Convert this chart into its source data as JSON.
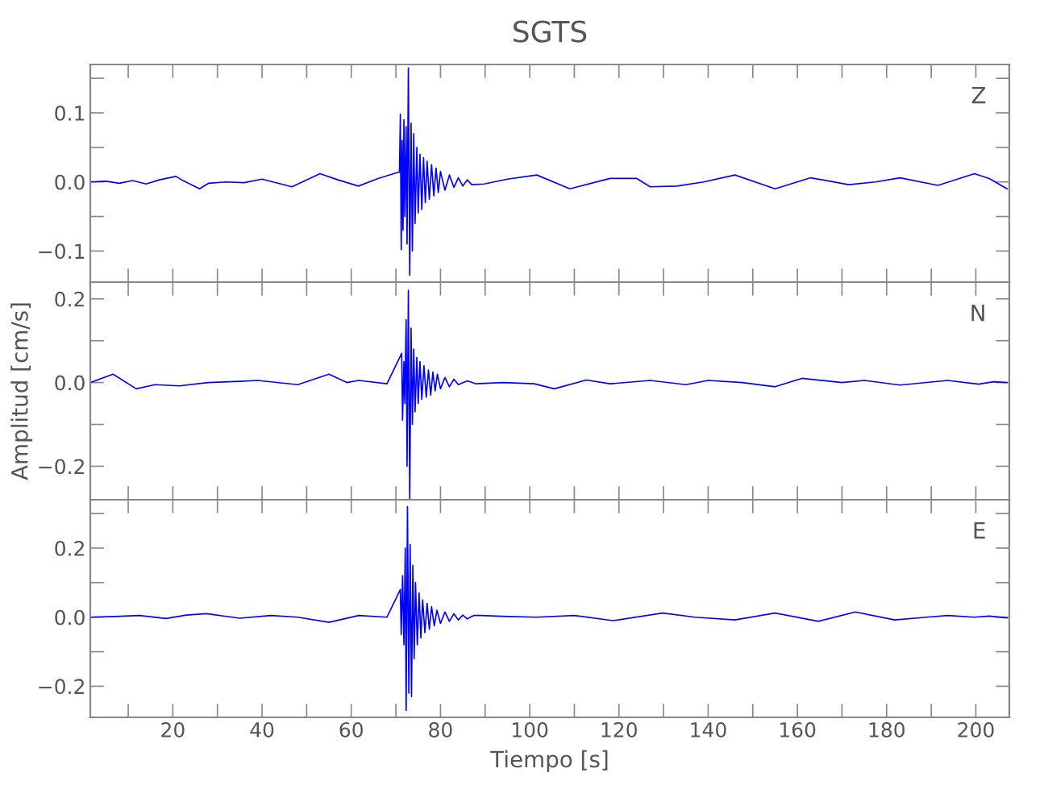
{
  "chart_data": [
    {
      "type": "line",
      "title": "SGTS",
      "annotations": [
        "Z"
      ],
      "grid": false,
      "tick_labels": "y",
      "xlim": [
        1.5,
        207.5
      ],
      "ylim": [
        -0.145,
        0.17
      ],
      "xticks": [
        {
          "value": 10,
          "label": null
        },
        20,
        {
          "value": 30,
          "label": null
        },
        40,
        {
          "value": 50,
          "label": null
        },
        60,
        {
          "value": 70,
          "label": null
        },
        80,
        {
          "value": 90,
          "label": null
        },
        100,
        {
          "value": 110,
          "label": null
        },
        120,
        {
          "value": 130,
          "label": null
        },
        140,
        {
          "value": 150,
          "label": null
        },
        160,
        {
          "value": 170,
          "label": null
        },
        180,
        {
          "value": 190,
          "label": null
        },
        200
      ],
      "yticks": [
        {
          "value": -0.1,
          "label": "−0.1"
        },
        {
          "value": -0.05,
          "label": null
        },
        {
          "value": 0,
          "label": "0.0"
        },
        {
          "value": 0.05,
          "label": null
        },
        {
          "value": 0.1,
          "label": "0.1"
        },
        {
          "value": 0.15,
          "label": null
        }
      ],
      "series": [
        {
          "color": "#0000ff",
          "x": [
            1.5,
            5,
            8,
            11,
            14,
            17,
            20.7,
            22,
            26,
            28,
            32,
            36,
            40,
            46.7,
            53,
            57,
            61.6,
            66,
            70.5,
            70.8,
            71.0,
            71.2,
            71.4,
            71.6,
            71.8,
            72.0,
            72.3,
            72.5,
            72.8,
            73.1,
            73.4,
            73.7,
            74.0,
            74.3,
            74.7,
            75.0,
            75.4,
            75.8,
            76.2,
            76.6,
            77.0,
            77.5,
            78.0,
            78.5,
            79.0,
            79.5,
            80.0,
            81,
            82,
            83,
            84,
            85,
            86,
            87,
            89.8,
            95,
            101.6,
            109,
            118,
            124,
            127,
            133,
            139,
            146,
            155,
            163,
            171.5,
            177.5,
            183,
            191.5,
            199.7,
            203,
            207
          ],
          "values": [
            0,
            0.001,
            -0.002,
            0.002,
            -0.003,
            0.003,
            0.008,
            0.003,
            -0.01,
            -0.002,
            0,
            -0.001,
            0.004,
            -0.007,
            0.012,
            0.003,
            -0.006,
            0.005,
            0.014,
            0.014,
            0.098,
            -0.098,
            0.06,
            -0.07,
            0.09,
            -0.05,
            0.08,
            -0.09,
            0.165,
            -0.135,
            0.085,
            -0.1,
            0.07,
            -0.06,
            0.05,
            -0.045,
            0.04,
            -0.04,
            0.035,
            -0.03,
            0.03,
            -0.025,
            0.025,
            -0.02,
            0.02,
            -0.015,
            0.015,
            -0.012,
            0.01,
            -0.008,
            0.006,
            -0.006,
            0.003,
            -0.004,
            -0.003,
            0.004,
            0.01,
            -0.01,
            0.005,
            0.005,
            -0.007,
            -0.006,
            0,
            0.01,
            -0.01,
            0.006,
            -0.004,
            0,
            0.006,
            -0.005,
            0.012,
            0.005,
            -0.01
          ]
        }
      ]
    },
    {
      "type": "line",
      "ylabel": "Amplitud [cm/s]",
      "annotations": [
        "N"
      ],
      "grid": false,
      "tick_labels": "y",
      "xlim": [
        1.5,
        207.5
      ],
      "ylim": [
        -0.28,
        0.24
      ],
      "xticks": [
        {
          "value": 10,
          "label": null
        },
        20,
        {
          "value": 30,
          "label": null
        },
        40,
        {
          "value": 50,
          "label": null
        },
        60,
        {
          "value": 70,
          "label": null
        },
        80,
        {
          "value": 90,
          "label": null
        },
        100,
        {
          "value": 110,
          "label": null
        },
        120,
        {
          "value": 130,
          "label": null
        },
        140,
        {
          "value": 150,
          "label": null
        },
        160,
        {
          "value": 170,
          "label": null
        },
        180,
        {
          "value": 190,
          "label": null
        },
        200
      ],
      "yticks": [
        {
          "value": -0.2,
          "label": "−0.2"
        },
        {
          "value": -0.1,
          "label": null
        },
        {
          "value": 0,
          "label": "0.0"
        },
        {
          "value": 0.1,
          "label": null
        },
        {
          "value": 0.2,
          "label": "0.2"
        }
      ],
      "series": [
        {
          "color": "#0000ff",
          "x": [
            1.5,
            6.6,
            11.8,
            16,
            21.5,
            28,
            35,
            39,
            48,
            55,
            59,
            61.7,
            68,
            71.3,
            71.5,
            71.8,
            72.0,
            72.3,
            72.5,
            72.8,
            73.1,
            73.4,
            73.7,
            74.0,
            74.3,
            74.7,
            75.0,
            75.4,
            75.8,
            76.3,
            76.8,
            77.3,
            77.8,
            78.3,
            78.8,
            79.3,
            80,
            81,
            82,
            83,
            84,
            86,
            88,
            94,
            101,
            105.5,
            112.7,
            118,
            127,
            135,
            140,
            147.6,
            155,
            161,
            170,
            175,
            183,
            193.7,
            200.6,
            204,
            207
          ],
          "values": [
            0,
            0.02,
            -0.015,
            -0.005,
            -0.008,
            0,
            0.003,
            0.005,
            -0.005,
            0.02,
            0,
            0.005,
            -0.003,
            0.07,
            -0.09,
            0.05,
            -0.05,
            0.15,
            -0.2,
            0.22,
            -0.28,
            0.13,
            -0.1,
            0.08,
            -0.07,
            0.06,
            -0.05,
            0.05,
            -0.04,
            0.04,
            -0.035,
            0.03,
            -0.03,
            0.025,
            -0.02,
            0.02,
            -0.015,
            0.012,
            -0.01,
            0.008,
            -0.005,
            0.004,
            -0.003,
            0,
            -0.003,
            -0.015,
            0.006,
            -0.003,
            0.005,
            -0.005,
            0.005,
            0,
            -0.01,
            0.01,
            0,
            0.005,
            -0.006,
            0.005,
            -0.004,
            0.002,
            0
          ]
        }
      ]
    },
    {
      "type": "line",
      "xlabel": "Tiempo [s]",
      "annotations": [
        "E"
      ],
      "grid": false,
      "xlim": [
        1.5,
        207.5
      ],
      "ylim": [
        -0.29,
        0.34
      ],
      "xticks": [
        {
          "value": 10,
          "label": null
        },
        20,
        {
          "value": 30,
          "label": null
        },
        40,
        {
          "value": 50,
          "label": null
        },
        60,
        {
          "value": 70,
          "label": null
        },
        80,
        {
          "value": 90,
          "label": null
        },
        100,
        {
          "value": 110,
          "label": null
        },
        120,
        {
          "value": 130,
          "label": null
        },
        140,
        {
          "value": 150,
          "label": null
        },
        160,
        {
          "value": 170,
          "label": null
        },
        180,
        {
          "value": 190,
          "label": null
        },
        200
      ],
      "yticks": [
        {
          "value": -0.2,
          "label": "−0.2"
        },
        {
          "value": -0.1,
          "label": null
        },
        {
          "value": 0,
          "label": "0.0"
        },
        {
          "value": 0.1,
          "label": null
        },
        {
          "value": 0.2,
          "label": "0.2"
        },
        {
          "value": 0.3,
          "label": null
        }
      ],
      "series": [
        {
          "color": "#0000ff",
          "x": [
            1.5,
            7,
            12.5,
            18.5,
            23,
            27.5,
            35,
            42,
            48,
            55,
            61.7,
            68,
            71.0,
            71.2,
            71.5,
            71.8,
            72.1,
            72.3,
            72.6,
            72.9,
            73.2,
            73.5,
            73.8,
            74.1,
            74.4,
            74.8,
            75.2,
            75.6,
            76.0,
            76.5,
            77.0,
            77.5,
            78.0,
            78.6,
            79.2,
            80,
            81,
            82,
            83,
            84,
            85,
            86,
            87.5,
            89,
            95,
            101.6,
            110,
            118.7,
            129.8,
            137,
            146,
            155,
            164.7,
            173,
            181.8,
            189,
            193.7,
            199.6,
            203,
            207
          ],
          "values": [
            0,
            0.002,
            0.005,
            -0.004,
            0.006,
            0.01,
            -0.003,
            0.005,
            0,
            -0.015,
            0.005,
            0,
            0.08,
            -0.05,
            0.12,
            -0.08,
            0.2,
            -0.27,
            0.32,
            -0.22,
            0.21,
            -0.23,
            0.15,
            -0.12,
            0.1,
            -0.08,
            0.07,
            -0.06,
            0.05,
            -0.045,
            0.04,
            -0.035,
            0.03,
            -0.025,
            0.02,
            -0.018,
            0.015,
            -0.012,
            0.01,
            -0.008,
            0.006,
            -0.005,
            0.005,
            0.005,
            0.002,
            0,
            0.005,
            -0.01,
            0.012,
            0,
            -0.008,
            0.012,
            -0.012,
            0.015,
            -0.008,
            0,
            0.005,
            0,
            0.003,
            -0.002
          ]
        }
      ]
    }
  ]
}
